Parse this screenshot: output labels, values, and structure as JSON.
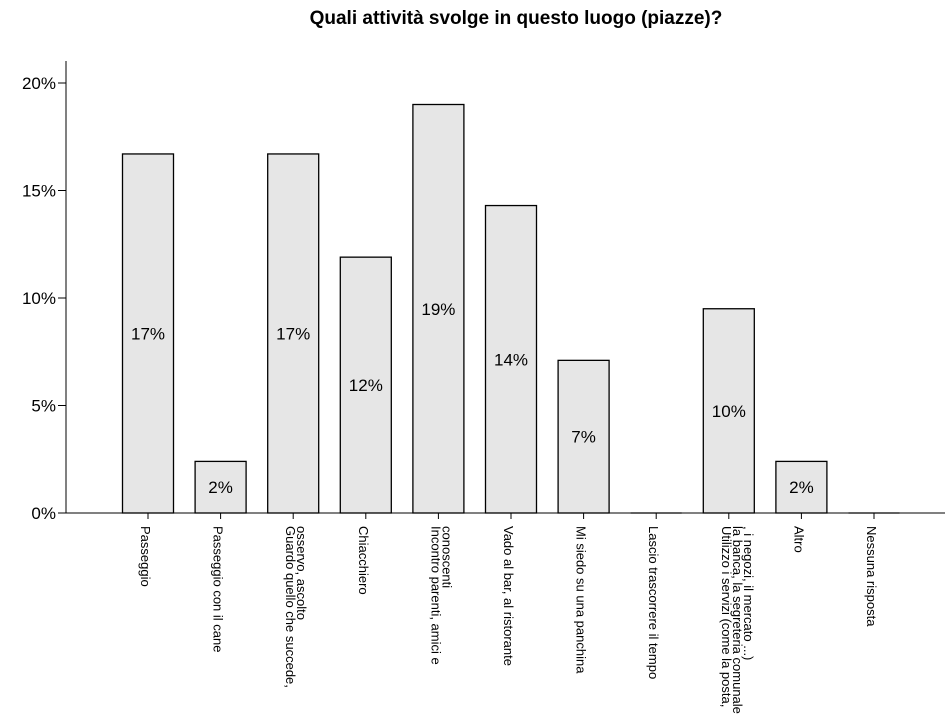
{
  "chart_data": {
    "type": "bar",
    "title": "Quali attività svolge in questo luogo (piazze)?",
    "xlabel": "",
    "ylabel": "",
    "ylim": [
      0,
      20
    ],
    "yticks": [
      "0%",
      "5%",
      "10%",
      "15%",
      "20%"
    ],
    "grid": false,
    "categories": [
      [
        "Passeggio"
      ],
      [
        "Passeggio con il cane"
      ],
      [
        "Guardo quello che succede,",
        "osservo, ascolto"
      ],
      [
        "Chiacchiero"
      ],
      [
        "Incontro parenti, amici e",
        "conoscenti"
      ],
      [
        "Vado al bar, al ristorante"
      ],
      [
        "Mi siedo su una panchina"
      ],
      [
        "Lascio trascorrere il tempo"
      ],
      [
        "Utilizzo i servizi (come la posta,",
        "la banca, la segreteria comunale",
        ", i negozi, il mercato ...)"
      ],
      [
        "Altro"
      ],
      [
        "Nessuna risposta"
      ]
    ],
    "values": [
      16.7,
      2.4,
      16.7,
      11.9,
      19.0,
      14.3,
      7.1,
      0,
      9.5,
      2.4,
      0
    ],
    "data_labels": [
      "17%",
      "2%",
      "17%",
      "12%",
      "19%",
      "14%",
      "7%",
      "",
      "10%",
      "2%",
      ""
    ],
    "colors": {
      "bar_fill": "#e6e6e6",
      "bar_stroke": "#000000",
      "axis": "#000000"
    }
  }
}
